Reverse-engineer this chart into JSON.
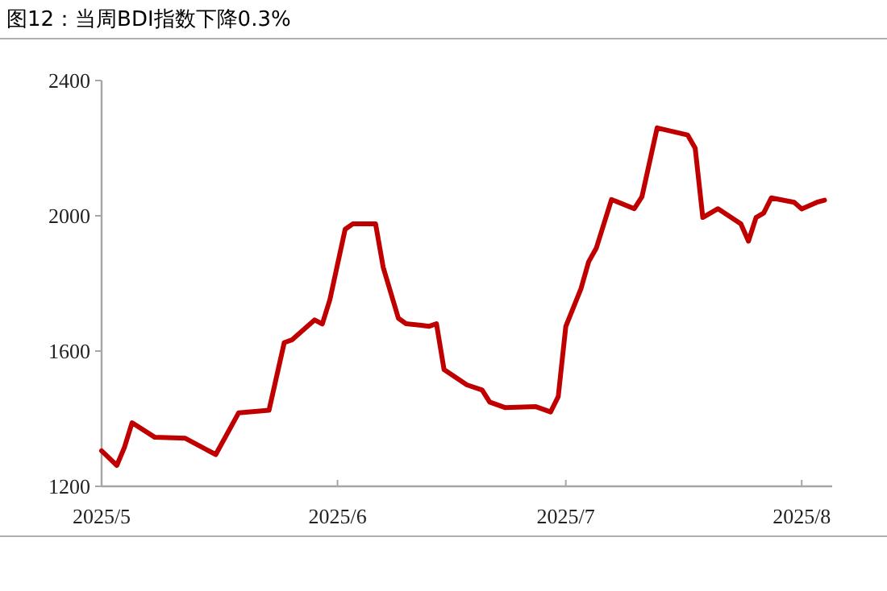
{
  "chart_data": {
    "type": "line",
    "title": "图12：当周BDI指数下降0.3%",
    "x": [
      "2025-05-01",
      "2025-05-03",
      "2025-05-04",
      "2025-05-05",
      "2025-05-08",
      "2025-05-12",
      "2025-05-16",
      "2025-05-19",
      "2025-05-23",
      "2025-05-25",
      "2025-05-26",
      "2025-05-29",
      "2025-05-30",
      "2025-05-31",
      "2025-06-02",
      "2025-06-03",
      "2025-06-06",
      "2025-06-07",
      "2025-06-09",
      "2025-06-10",
      "2025-06-12",
      "2025-06-13",
      "2025-06-14",
      "2025-06-15",
      "2025-06-18",
      "2025-06-20",
      "2025-06-21",
      "2025-06-23",
      "2025-06-27",
      "2025-06-29",
      "2025-06-30",
      "2025-07-01",
      "2025-07-03",
      "2025-07-04",
      "2025-07-05",
      "2025-07-07",
      "2025-07-10",
      "2025-07-11",
      "2025-07-13",
      "2025-07-17",
      "2025-07-18",
      "2025-07-19",
      "2025-07-21",
      "2025-07-24",
      "2025-07-25",
      "2025-07-26",
      "2025-07-27",
      "2025-07-28",
      "2025-07-31",
      "2025-08-01",
      "2025-08-03",
      "2025-08-04"
    ],
    "series": [
      {
        "color": "#c00000",
        "values": [
          1305,
          1262,
          1315,
          1388,
          1345,
          1342,
          1294,
          1417,
          1425,
          1625,
          1633,
          1692,
          1680,
          1752,
          1960,
          1976,
          1976,
          1848,
          1697,
          1681,
          1676,
          1673,
          1681,
          1545,
          1500,
          1485,
          1449,
          1433,
          1436,
          1420,
          1465,
          1673,
          1785,
          1864,
          1904,
          2048,
          2021,
          2056,
          2260,
          2239,
          2200,
          1995,
          2021,
          1976,
          1925,
          1995,
          2008,
          2053,
          2040,
          2020,
          2040,
          2046
        ]
      }
    ],
    "xlim": [
      "2025-05-01",
      "2025-08-05"
    ],
    "xticks": [
      {
        "value": "2025-05-01",
        "label": "2025/5"
      },
      {
        "value": "2025-06-01",
        "label": "2025/6"
      },
      {
        "value": "2025-07-01",
        "label": "2025/7"
      },
      {
        "value": "2025-08-01",
        "label": "2025/8"
      }
    ],
    "ylim": [
      1200,
      2400
    ],
    "yticks": [
      1200,
      1600,
      2000,
      2400
    ],
    "line_style": "solid",
    "marker": "none",
    "grid": false
  }
}
